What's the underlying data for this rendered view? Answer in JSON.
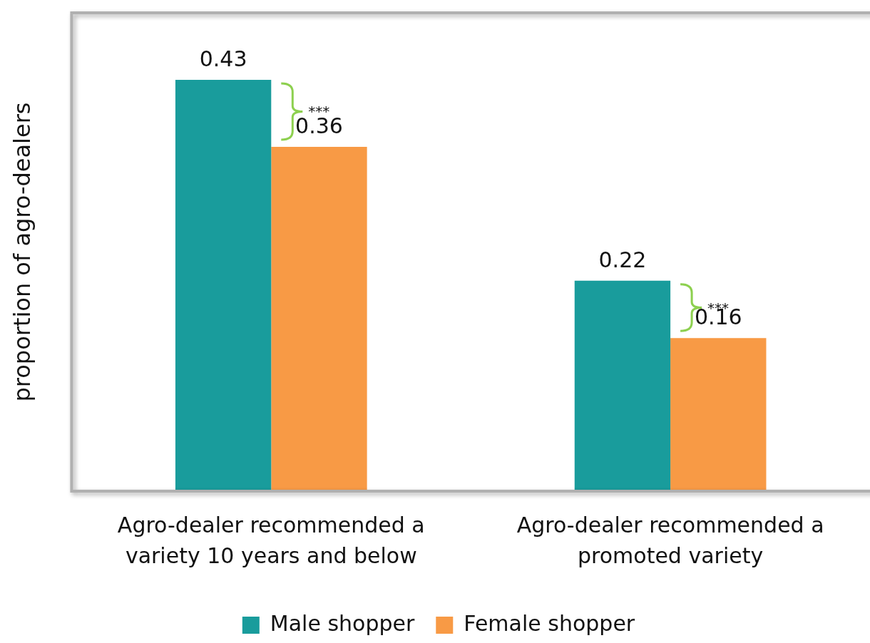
{
  "chart_data": {
    "type": "bar",
    "ylabel": "proportion of agro-dealers",
    "categories": [
      "Agro-dealer recommended a variety 10 years and below",
      "Agro-dealer recommended a promoted variety"
    ],
    "series": [
      {
        "name": "Male shopper",
        "color": "#199c9c",
        "values": [
          0.43,
          0.22
        ]
      },
      {
        "name": "Female shopper",
        "color": "#f89a45",
        "values": [
          0.36,
          0.16
        ]
      }
    ],
    "data_labels": true,
    "legend": "bottom",
    "grid": false,
    "tick_labels": "x",
    "annotations": [
      "***",
      "***"
    ]
  }
}
